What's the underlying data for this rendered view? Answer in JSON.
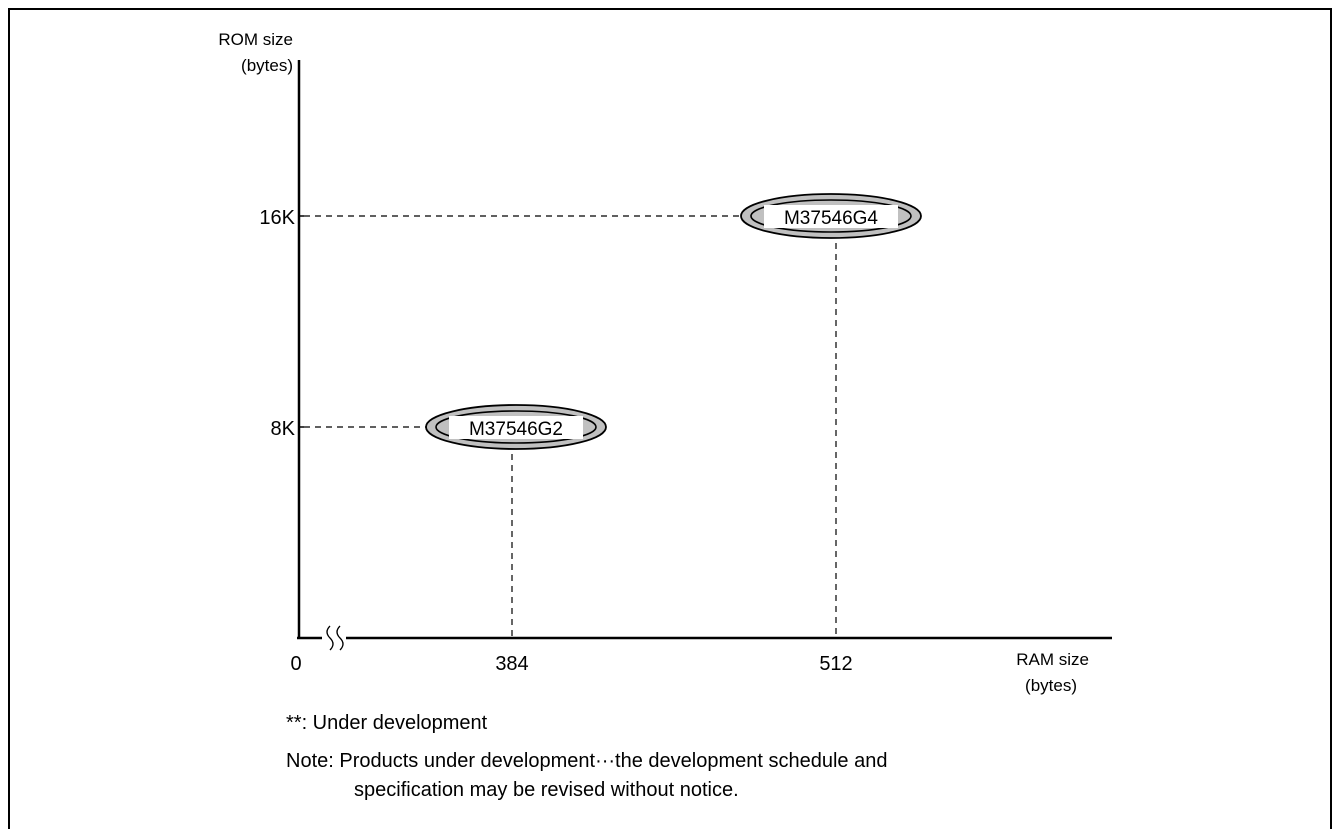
{
  "chart_data": {
    "type": "scatter",
    "ylabel_line1": "ROM size",
    "ylabel_line2": "(bytes)",
    "xlabel_line1": "RAM size",
    "xlabel_line2": "(bytes)",
    "origin_label": "0",
    "x_ticks": [
      "384",
      "512"
    ],
    "y_ticks": [
      "8K",
      "16K"
    ],
    "points": [
      {
        "label": "M37546G2",
        "ram": 384,
        "rom": "8K"
      },
      {
        "label": "M37546G4",
        "ram": 512,
        "rom": "16K"
      }
    ],
    "axis_break": true
  },
  "notes": {
    "under_development": "**: Under development",
    "note_line1": "Note: Products under development···the development schedule and",
    "note_line2": "specification may be revised without notice."
  },
  "colors": {
    "ellipse_fill": "#c0c0c0",
    "line": "#000000",
    "background": "#ffffff"
  }
}
